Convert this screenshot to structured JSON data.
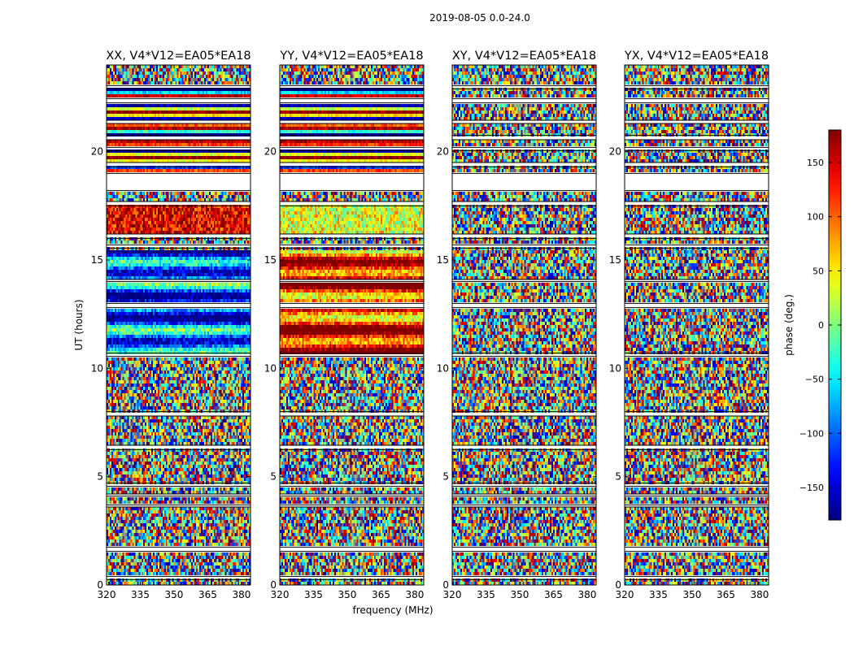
{
  "figure": {
    "suptitle": "2019-08-05 0.0-24.0"
  },
  "chart_data": {
    "type": "heatmap",
    "panels": [
      {
        "title": "XX, V4*V12=EA05*EA18",
        "pattern": "xx"
      },
      {
        "title": "YY, V4*V12=EA05*EA18",
        "pattern": "yy"
      },
      {
        "title": "XY, V4*V12=EA05*EA18",
        "pattern": "noise"
      },
      {
        "title": "YX, V4*V12=EA05*EA18",
        "pattern": "noise"
      }
    ],
    "xlabel": "frequency (MHz)",
    "ylabel": "UT (hours)",
    "xlim": [
      320,
      384
    ],
    "ylim": [
      0,
      24
    ],
    "xticks": [
      "320",
      "335",
      "350",
      "365",
      "380"
    ],
    "yticks": [
      "0",
      "5",
      "10",
      "15",
      "20"
    ],
    "colorbar": {
      "label": "phase (deg.)",
      "range": [
        -180,
        180
      ],
      "ticks": [
        "−150",
        "−100",
        "−50",
        "0",
        "50",
        "100",
        "150"
      ],
      "colormap": "jet"
    },
    "flagged_ut_ranges": [
      [
        0.25,
        0.4
      ],
      [
        1.55,
        1.75
      ],
      [
        3.6,
        3.7
      ],
      [
        4.1,
        4.2
      ],
      [
        4.55,
        4.7
      ],
      [
        6.25,
        6.45
      ],
      [
        7.8,
        8.0
      ],
      [
        10.55,
        10.7
      ],
      [
        12.8,
        13.0
      ],
      [
        14.0,
        14.1
      ],
      [
        15.55,
        15.7
      ],
      [
        16.0,
        16.2
      ],
      [
        17.5,
        17.7
      ],
      [
        18.2,
        19.0
      ],
      [
        19.3,
        19.5
      ],
      [
        20.05,
        20.2
      ],
      [
        20.55,
        20.75
      ],
      [
        21.3,
        21.45
      ],
      [
        22.25,
        22.45
      ],
      [
        22.9,
        23.05
      ]
    ],
    "grid": false
  }
}
